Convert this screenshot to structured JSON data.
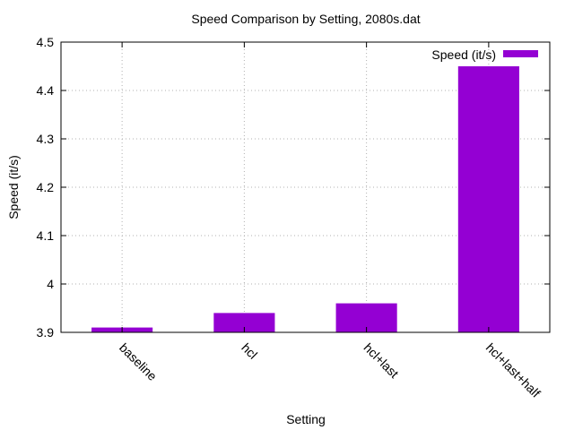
{
  "chart_data": {
    "type": "bar",
    "title": "Speed Comparison by Setting, 2080s.dat",
    "xlabel": "Setting",
    "ylabel": "Speed (it/s)",
    "categories": [
      "baseline",
      "hcl",
      "hcl+last",
      "hcl+last+half"
    ],
    "series": [
      {
        "name": "Speed (it/s)",
        "values": [
          3.91,
          3.94,
          3.96,
          4.45
        ]
      }
    ],
    "ylim": [
      3.9,
      4.5
    ],
    "yticks": [
      3.9,
      4,
      4.1,
      4.2,
      4.3,
      4.4,
      4.5
    ],
    "ytick_labels": [
      "3.9",
      "4",
      "4.1",
      "4.2",
      "4.3",
      "4.4",
      "4.5"
    ],
    "grid": true,
    "legend_position": "top-right",
    "bar_color": "#9400d3"
  }
}
